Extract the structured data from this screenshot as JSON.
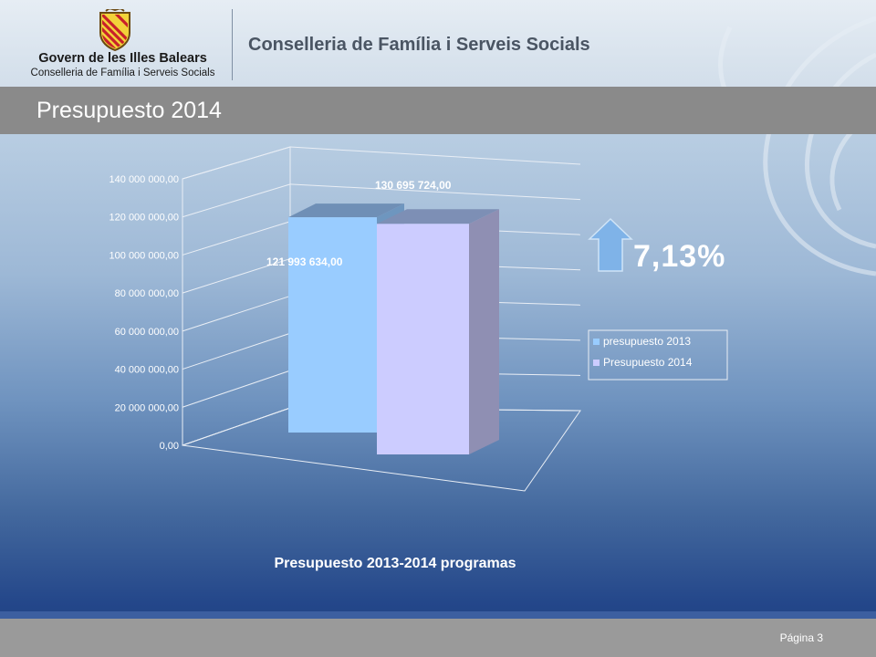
{
  "header": {
    "logo_title": "Govern de les Illes Balears",
    "logo_subtitle": "Conselleria de Família i Serveis Socials",
    "department_title": "Conselleria de Família i Serveis Socials"
  },
  "slide": {
    "title": "Presupuesto 2014"
  },
  "growth": {
    "value": "7,13%",
    "arrow_icon": "up-arrow-icon"
  },
  "footer": {
    "page_label": "Página 3"
  },
  "colors": {
    "series_2013": "#99ccff",
    "series_2014": "#ccccff",
    "arrow": "#7fb3e8",
    "growth_text": "#ffffff",
    "title_bar": "#8a8a8a"
  },
  "chart_data": {
    "type": "bar",
    "title": "Presupuesto 2013-2014 programas",
    "xlabel": "",
    "ylabel": "",
    "ylim": [
      0,
      140000000
    ],
    "ytick_values": [
      0,
      20000000,
      40000000,
      60000000,
      80000000,
      100000000,
      120000000,
      140000000
    ],
    "ytick_labels": [
      "0,00",
      "20 000 000,00",
      "40 000 000,00",
      "60 000 000,00",
      "80 000 000,00",
      "100 000 000,00",
      "120 000 000,00",
      "140 000 000,00"
    ],
    "grid": true,
    "legend_position": "right",
    "series": [
      {
        "name": "presupuesto  2013",
        "values": [
          121993634.0
        ],
        "data_label": "121 993 634,00",
        "color": "#99ccff"
      },
      {
        "name": "Presupuesto  2014",
        "values": [
          130695724.0
        ],
        "data_label": "130 695 724,00",
        "color": "#ccccff"
      }
    ]
  }
}
